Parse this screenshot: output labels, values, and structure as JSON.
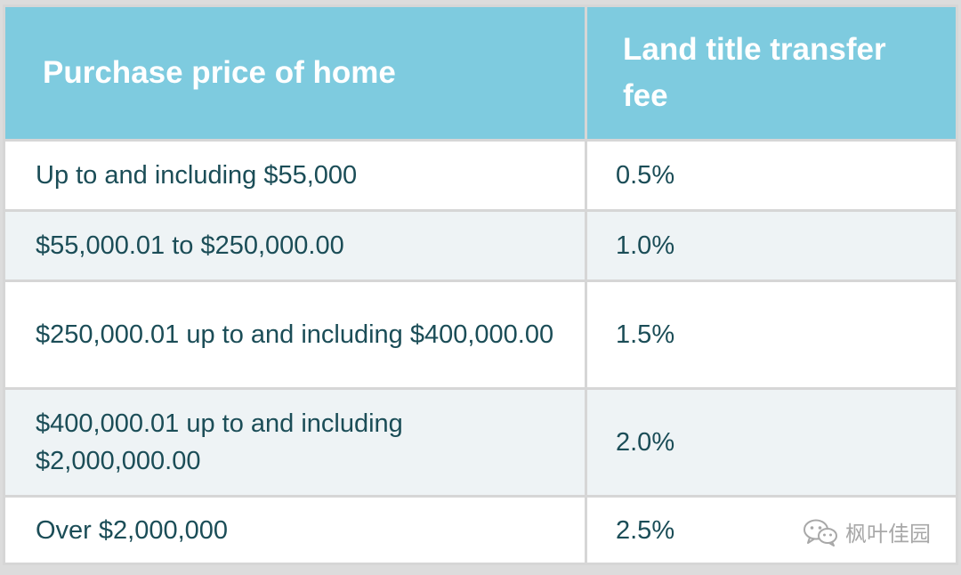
{
  "table": {
    "headers": [
      "Purchase price of home",
      "Land title transfer fee"
    ],
    "rows": [
      {
        "price": "Up to and including $55,000",
        "fee": "0.5%"
      },
      {
        "price": "$55,000.01 to $250,000.00",
        "fee": "1.0%"
      },
      {
        "price": "$250,000.01 up to and including $400,000.00",
        "fee": "1.5%"
      },
      {
        "price": "$400,000.01 up to and including $2,000,000.00",
        "fee": "2.0%"
      },
      {
        "price": "Over $2,000,000",
        "fee": "2.5%"
      }
    ]
  },
  "watermark": {
    "icon": "wechat-icon",
    "text": "枫叶佳园"
  },
  "colors": {
    "header_bg": "#7ecbdf",
    "header_text": "#ffffff",
    "body_text": "#1b4d57",
    "row_alt_bg": "#eef3f5"
  }
}
